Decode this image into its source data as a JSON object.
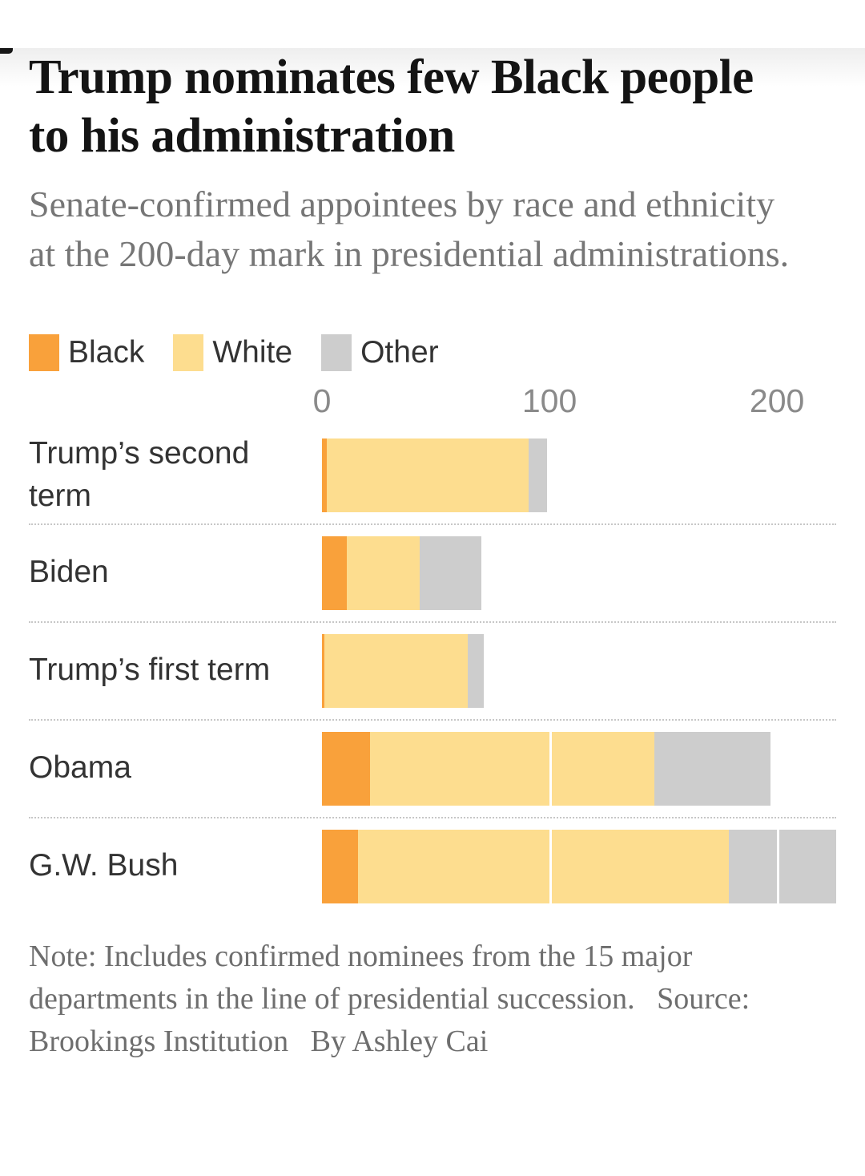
{
  "header": {
    "title": "Trump nominates few Black people to his administration",
    "subtitle": "Senate-confirmed appointees by race and ethnicity at the 200-day mark in presidential administrations."
  },
  "legend": {
    "items": [
      {
        "label": "Black",
        "color": "#F9A13B"
      },
      {
        "label": "White",
        "color": "#FDDD8F"
      },
      {
        "label": "Other",
        "color": "#CDCDCD"
      }
    ]
  },
  "chart_data": {
    "type": "bar",
    "orientation": "horizontal",
    "stacked": true,
    "title": "Trump nominates few Black people to his administration",
    "subtitle": "Senate-confirmed appointees by race and ethnicity at the 200-day mark in presidential administrations.",
    "categories": [
      "Trump’s second term",
      "Biden",
      "Trump’s first term",
      "Obama",
      "G.W. Bush"
    ],
    "series": [
      {
        "name": "Black",
        "color": "#F9A13B",
        "values": [
          2,
          11,
          1,
          21,
          16
        ]
      },
      {
        "name": "White",
        "color": "#FDDD8F",
        "values": [
          89,
          32,
          63,
          125,
          163
        ]
      },
      {
        "name": "Other",
        "color": "#CDCDCD",
        "values": [
          8,
          27,
          7,
          51,
          47
        ]
      }
    ],
    "xlim": [
      0,
      226
    ],
    "x_ticks": [
      0,
      100,
      200
    ],
    "x_gridlines": [
      100,
      200
    ],
    "legend_position": "top",
    "grid": "white-lines-over-bars",
    "row_separator": "dotted"
  },
  "footer": {
    "note_label": "Note:",
    "note": "Includes confirmed nominees from the 15 major departments in the line of presidential succession.",
    "source_label": "Source:",
    "source": "Brookings Institution",
    "byline": "By Ashley Cai"
  }
}
